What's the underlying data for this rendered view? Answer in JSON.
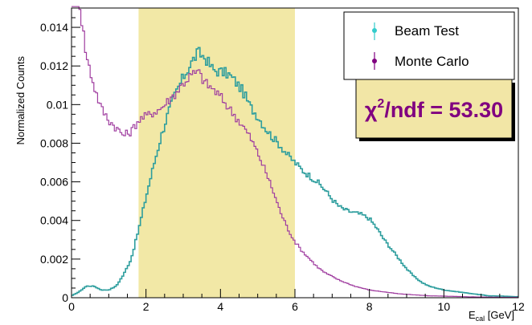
{
  "chart_data": {
    "type": "line",
    "xlabel_main": "E",
    "xlabel_sub": "cal",
    "xlabel_unit": " [GeV]",
    "ylabel": "Normalized Counts",
    "xlim": [
      0,
      12
    ],
    "ylim": [
      0,
      0.015
    ],
    "x_ticks": [
      0,
      2,
      4,
      6,
      8,
      10,
      12
    ],
    "x_tick_labels": [
      "0",
      "2",
      "4",
      "6",
      "8",
      "10",
      "12"
    ],
    "y_ticks": [
      0,
      0.002,
      0.004,
      0.006,
      0.008,
      0.01,
      0.012,
      0.014
    ],
    "y_tick_labels": [
      "0",
      "0.002",
      "0.004",
      "0.006",
      "0.008",
      "0.01",
      "0.012",
      "0.014"
    ],
    "shaded_region": {
      "x_range": [
        1.8,
        6.0
      ],
      "color": "#f2e8a6"
    },
    "bin_width": 0.05,
    "series": [
      {
        "name": "Beam Test",
        "color": "#2e9e9e",
        "marker_color": "#33cccc",
        "anchors": [
          [
            0,
            0.0001
          ],
          [
            0.2,
            0.0003
          ],
          [
            0.4,
            0.0006
          ],
          [
            0.6,
            0.0006
          ],
          [
            0.8,
            0.0004
          ],
          [
            1.0,
            0.0004
          ],
          [
            1.2,
            0.0006
          ],
          [
            1.4,
            0.0012
          ],
          [
            1.6,
            0.002
          ],
          [
            1.8,
            0.0035
          ],
          [
            2.0,
            0.0052
          ],
          [
            2.2,
            0.0068
          ],
          [
            2.4,
            0.0083
          ],
          [
            2.6,
            0.0096
          ],
          [
            2.8,
            0.0106
          ],
          [
            3.0,
            0.0114
          ],
          [
            3.2,
            0.0121
          ],
          [
            3.4,
            0.0127
          ],
          [
            3.6,
            0.0124
          ],
          [
            3.8,
            0.0118
          ],
          [
            4.0,
            0.0117
          ],
          [
            4.2,
            0.0116
          ],
          [
            4.4,
            0.0112
          ],
          [
            4.6,
            0.0107
          ],
          [
            4.8,
            0.0099
          ],
          [
            5.0,
            0.0094
          ],
          [
            5.2,
            0.0088
          ],
          [
            5.4,
            0.0083
          ],
          [
            5.6,
            0.0079
          ],
          [
            5.8,
            0.0074
          ],
          [
            6.0,
            0.007
          ],
          [
            6.2,
            0.0066
          ],
          [
            6.4,
            0.0063
          ],
          [
            6.6,
            0.006
          ],
          [
            6.8,
            0.0056
          ],
          [
            7.0,
            0.0051
          ],
          [
            7.2,
            0.0047
          ],
          [
            7.4,
            0.0045
          ],
          [
            7.6,
            0.0044
          ],
          [
            7.8,
            0.0043
          ],
          [
            8.0,
            0.0041
          ],
          [
            8.2,
            0.0036
          ],
          [
            8.4,
            0.003
          ],
          [
            8.6,
            0.0025
          ],
          [
            8.8,
            0.002
          ],
          [
            9.0,
            0.0015
          ],
          [
            9.2,
            0.0011
          ],
          [
            9.4,
            0.0008
          ],
          [
            9.6,
            0.0006
          ],
          [
            9.8,
            0.0005
          ],
          [
            10.0,
            0.0004
          ],
          [
            10.4,
            0.0003
          ],
          [
            10.8,
            0.0002
          ],
          [
            11.2,
            0.0001
          ],
          [
            11.6,
            8e-05
          ],
          [
            12.0,
            5e-05
          ]
        ]
      },
      {
        "name": "Monte Carlo",
        "color": "#a03ea0",
        "marker_color": "#800080",
        "anchors": [
          [
            0,
            0.016
          ],
          [
            0.2,
            0.0155
          ],
          [
            0.4,
            0.0125
          ],
          [
            0.6,
            0.011
          ],
          [
            0.8,
            0.0098
          ],
          [
            1.0,
            0.0092
          ],
          [
            1.2,
            0.0088
          ],
          [
            1.4,
            0.0084
          ],
          [
            1.6,
            0.0086
          ],
          [
            1.8,
            0.0092
          ],
          [
            2.0,
            0.0094
          ],
          [
            2.2,
            0.0096
          ],
          [
            2.4,
            0.0098
          ],
          [
            2.6,
            0.0102
          ],
          [
            2.8,
            0.0106
          ],
          [
            3.0,
            0.0111
          ],
          [
            3.2,
            0.0115
          ],
          [
            3.4,
            0.0117
          ],
          [
            3.6,
            0.0111
          ],
          [
            3.8,
            0.0108
          ],
          [
            4.0,
            0.0104
          ],
          [
            4.2,
            0.0099
          ],
          [
            4.4,
            0.0094
          ],
          [
            4.6,
            0.0089
          ],
          [
            4.8,
            0.0083
          ],
          [
            5.0,
            0.0075
          ],
          [
            5.2,
            0.0066
          ],
          [
            5.4,
            0.0056
          ],
          [
            5.6,
            0.0045
          ],
          [
            5.8,
            0.0036
          ],
          [
            6.0,
            0.0029
          ],
          [
            6.2,
            0.0024
          ],
          [
            6.4,
            0.002
          ],
          [
            6.6,
            0.0016
          ],
          [
            6.8,
            0.0013
          ],
          [
            7.0,
            0.0011
          ],
          [
            7.2,
            0.0009
          ],
          [
            7.6,
            0.0006
          ],
          [
            8.0,
            0.0004
          ],
          [
            8.4,
            0.0003
          ],
          [
            8.8,
            0.0002
          ],
          [
            9.2,
            0.00015
          ],
          [
            9.6,
            0.0001
          ],
          [
            10.0,
            8e-05
          ],
          [
            10.6,
            5e-05
          ],
          [
            11.2,
            3e-05
          ],
          [
            12.0,
            2e-05
          ]
        ]
      }
    ],
    "legend": {
      "placement": "top-right",
      "entries": [
        "Beam Test",
        "Monte Carlo"
      ]
    },
    "annotation": {
      "chi_symbol": "χ",
      "superscript": "2",
      "suffix": "/ndf = 53.30",
      "text_color": "#800080",
      "box_color": "#f2e6a6"
    }
  }
}
